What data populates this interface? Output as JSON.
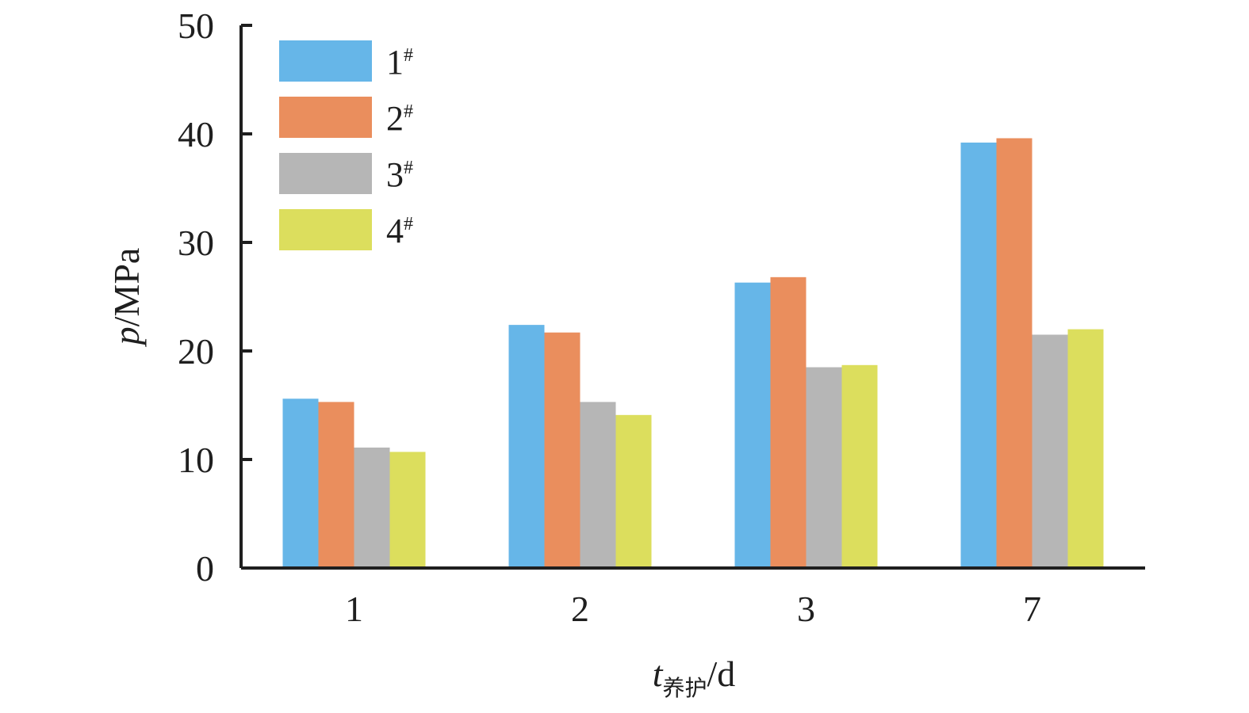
{
  "chart_data": {
    "type": "bar",
    "categories": [
      "1",
      "2",
      "3",
      "7"
    ],
    "series": [
      {
        "name": "1#",
        "values": [
          15.6,
          22.4,
          26.3,
          39.2
        ]
      },
      {
        "name": "2#",
        "values": [
          15.3,
          21.7,
          26.8,
          39.6
        ]
      },
      {
        "name": "3#",
        "values": [
          11.1,
          15.3,
          18.5,
          21.5
        ]
      },
      {
        "name": "4#",
        "values": [
          10.7,
          14.1,
          18.7,
          22.0
        ]
      }
    ],
    "xlabel": {
      "main": "t",
      "subscript": "养护",
      "suffix": "/d"
    },
    "ylabel": {
      "main": "p",
      "suffix": "/MPa"
    },
    "ylim": [
      0,
      50
    ],
    "yticks": [
      "0",
      "10",
      "20",
      "30",
      "40",
      "50"
    ],
    "grid": false,
    "legend_position": "top-left",
    "colors": [
      "#66b6e8",
      "#ea8e5d",
      "#b6b6b6",
      "#dcde5d"
    ],
    "axis_color": "#1f1f1f"
  }
}
